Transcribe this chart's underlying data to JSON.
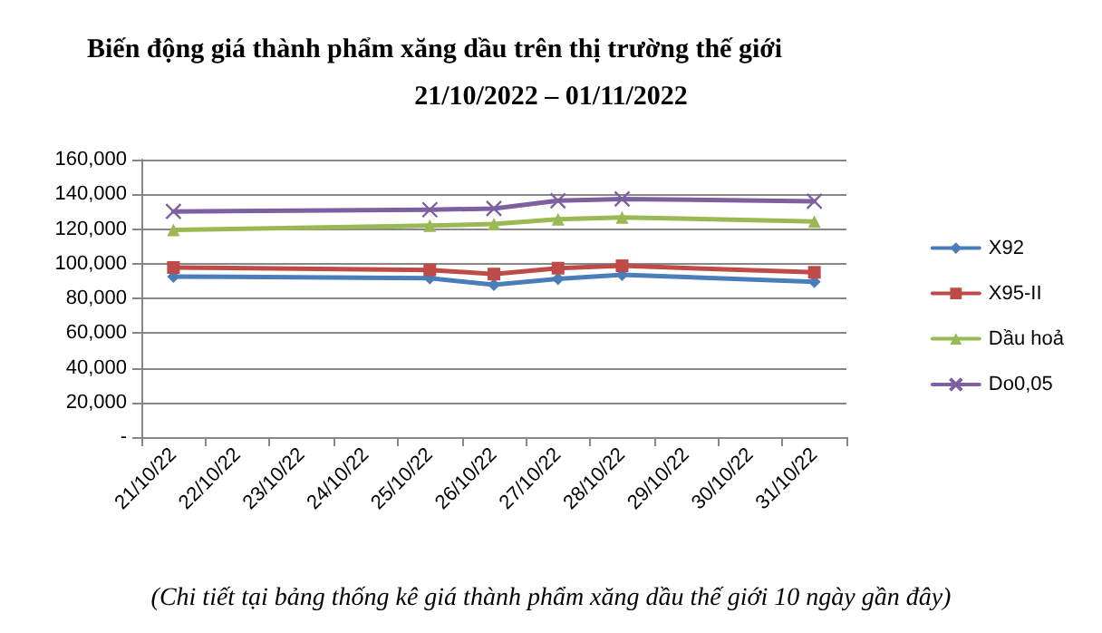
{
  "chart_data": {
    "type": "line",
    "title": "Biến động giá thành phẩm xăng dầu trên thị trường thế giới\n21/10/2022 – 01/11/2022",
    "annotations": [
      "(Chi tiết tại bảng thống kê giá thành phẩm xăng dầu thế giới 10 ngày gần đây)"
    ],
    "categories": [
      "21/10/22",
      "22/10/22",
      "23/10/22",
      "24/10/22",
      "25/10/22",
      "26/10/22",
      "27/10/22",
      "28/10/22",
      "29/10/22",
      "30/10/22",
      "31/10/22"
    ],
    "series": [
      {
        "name": "X92",
        "color": "#4a7ebb",
        "marker": "diamond",
        "values": [
          92600,
          null,
          null,
          null,
          91600,
          87800,
          91200,
          93600,
          null,
          null,
          89500
        ]
      },
      {
        "name": "X95-II",
        "color": "#be4b48",
        "marker": "square",
        "values": [
          97800,
          null,
          null,
          null,
          96400,
          94000,
          97400,
          98800,
          null,
          null,
          95000
        ]
      },
      {
        "name": "Dầu hoả",
        "color": "#98b954",
        "marker": "triangle",
        "values": [
          119500,
          null,
          null,
          null,
          121900,
          122900,
          125600,
          126700,
          null,
          null,
          124300
        ]
      },
      {
        "name": "Do0,05",
        "color": "#7d60a0",
        "marker": "cross",
        "values": [
          130100,
          null,
          null,
          null,
          131100,
          131800,
          136300,
          137300,
          null,
          null,
          136000
        ]
      }
    ],
    "ylim": [
      0,
      160000
    ],
    "yticks": [
      {
        "value": 0,
        "label": "-"
      },
      {
        "value": 20000,
        "label": "20,000"
      },
      {
        "value": 40000,
        "label": "40,000"
      },
      {
        "value": 60000,
        "label": "60,000"
      },
      {
        "value": 80000,
        "label": "80,000"
      },
      {
        "value": 100000,
        "label": "100,000"
      },
      {
        "value": 120000,
        "label": "120,000"
      },
      {
        "value": 140000,
        "label": "140,000"
      },
      {
        "value": 160000,
        "label": "160,000"
      }
    ],
    "grid": "y",
    "legend": "right",
    "line_style": "solid"
  }
}
